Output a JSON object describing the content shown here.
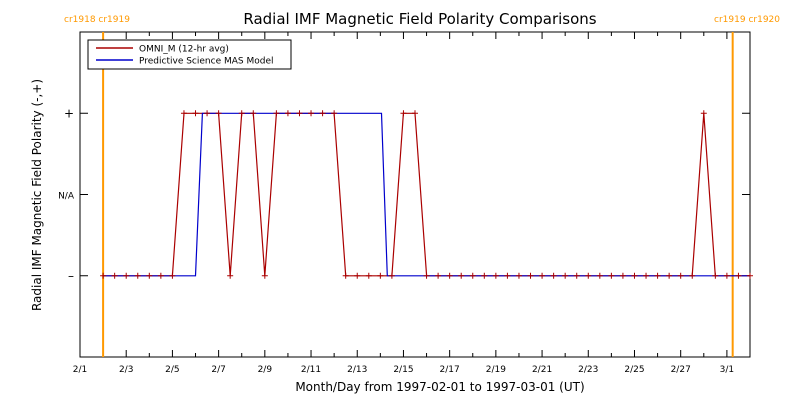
{
  "chart_data": {
    "type": "line",
    "title": "Radial IMF Magnetic Field Polarity Comparisons",
    "xlabel": "Month/Day from 1997-02-01 to 1997-03-01 (UT)",
    "ylabel": "Radial IMF Magnetic Field Polarity (-,+)",
    "x_unit": "days",
    "xlim": [
      0,
      29
    ],
    "ylim": [
      -2,
      2
    ],
    "y_ticks": [
      {
        "value": 1,
        "label": "+"
      },
      {
        "value": 0,
        "label": "N/A"
      },
      {
        "value": -1,
        "label": "–"
      }
    ],
    "x_ticks": [
      {
        "value": 0,
        "label": "2/1"
      },
      {
        "value": 2,
        "label": "2/3"
      },
      {
        "value": 4,
        "label": "2/5"
      },
      {
        "value": 6,
        "label": "2/7"
      },
      {
        "value": 8,
        "label": "2/9"
      },
      {
        "value": 10,
        "label": "2/11"
      },
      {
        "value": 12,
        "label": "2/13"
      },
      {
        "value": 14,
        "label": "2/15"
      },
      {
        "value": 16,
        "label": "2/17"
      },
      {
        "value": 18,
        "label": "2/19"
      },
      {
        "value": 20,
        "label": "2/21"
      },
      {
        "value": 22,
        "label": "2/23"
      },
      {
        "value": 24,
        "label": "2/25"
      },
      {
        "value": 26,
        "label": "2/27"
      },
      {
        "value": 28,
        "label": "3/1"
      }
    ],
    "carrington_markers": [
      {
        "x": 1.0,
        "label": "cr1918 cr1919",
        "side": "left"
      },
      {
        "x": 28.25,
        "label": "cr1919 cr1920",
        "side": "right"
      }
    ],
    "legend": {
      "placement": "top-left"
    },
    "series": [
      {
        "name": "OMNI_M (12-hr avg)",
        "color": "#aa0000",
        "markers": true,
        "x": [
          1.0,
          1.5,
          2.0,
          2.5,
          3.0,
          3.5,
          4.0,
          4.5,
          5.0,
          5.5,
          6.0,
          6.5,
          7.0,
          7.5,
          8.0,
          8.5,
          9.0,
          9.5,
          10.0,
          10.5,
          11.0,
          11.5,
          12.0,
          12.5,
          13.0,
          13.5,
          14.0,
          14.5,
          15.0,
          15.5,
          16.0,
          16.5,
          17.0,
          17.5,
          18.0,
          18.5,
          19.0,
          19.5,
          20.0,
          20.5,
          21.0,
          21.5,
          22.0,
          22.5,
          23.0,
          23.5,
          24.0,
          24.5,
          25.0,
          25.5,
          26.0,
          26.5,
          27.0,
          27.5,
          28.0,
          28.5,
          29.0
        ],
        "y": [
          -1,
          -1,
          -1,
          -1,
          -1,
          -1,
          -1,
          1,
          1,
          1,
          1,
          -1,
          1,
          1,
          -1,
          1,
          1,
          1,
          1,
          1,
          1,
          -1,
          -1,
          -1,
          -1,
          -1,
          1,
          1,
          -1,
          -1,
          -1,
          -1,
          -1,
          -1,
          -1,
          -1,
          -1,
          -1,
          -1,
          -1,
          -1,
          -1,
          -1,
          -1,
          -1,
          -1,
          -1,
          -1,
          -1,
          -1,
          -1,
          -1,
          1,
          -1,
          -1,
          -1,
          -1
        ]
      },
      {
        "name": "Predictive Science MAS Model",
        "color": "#0000cc",
        "markers": false,
        "x": [
          1.0,
          5.0,
          5.3,
          13.05,
          13.3,
          29.0
        ],
        "y": [
          -1,
          -1,
          1,
          1,
          -1,
          -1
        ]
      }
    ]
  }
}
